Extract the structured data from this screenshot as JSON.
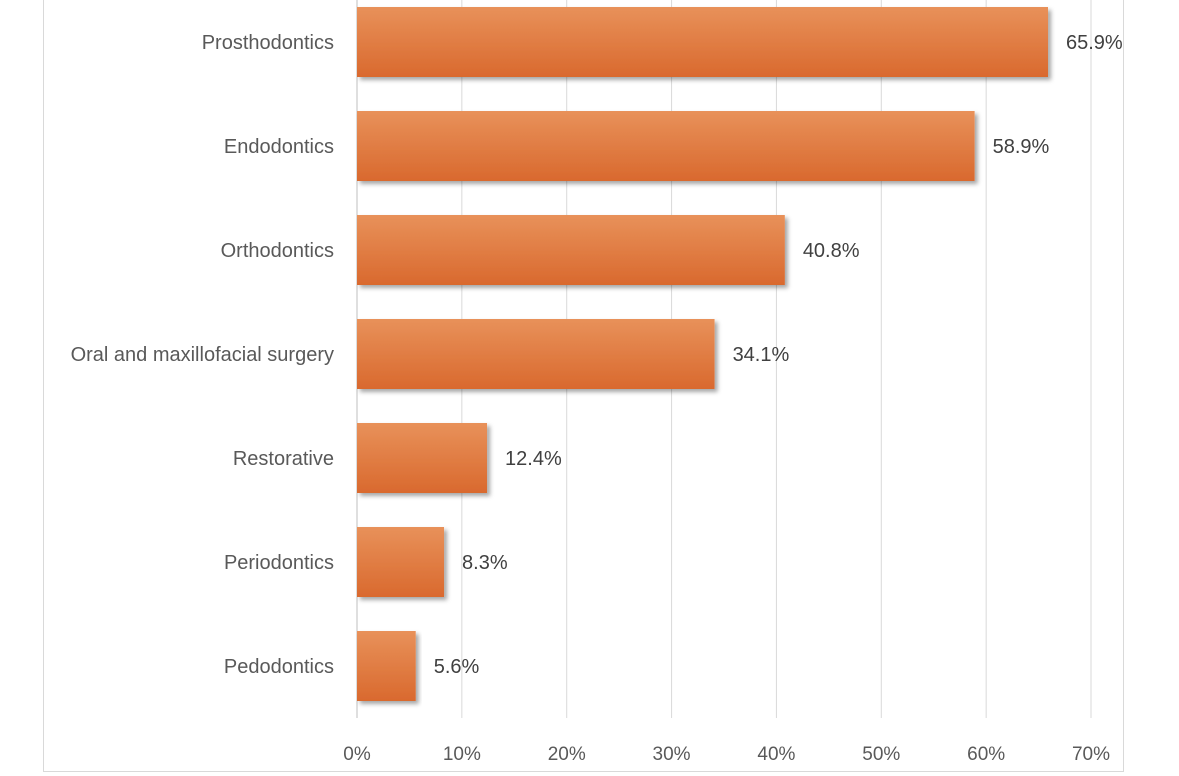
{
  "chart_data": {
    "type": "bar",
    "orientation": "horizontal",
    "title": "",
    "xlabel": "",
    "ylabel": "",
    "categories": [
      "Prosthodontics",
      "Endodontics",
      "Orthodontics",
      "Oral and maxillofacial surgery",
      "Restorative",
      "Periodontics",
      "Pedodontics"
    ],
    "values": [
      65.9,
      58.9,
      40.8,
      34.1,
      12.4,
      8.3,
      5.6
    ],
    "data_labels": [
      "65.9%",
      "58.9%",
      "40.8%",
      "34.1%",
      "12.4%",
      "8.3%",
      "5.6%"
    ],
    "xlim": [
      0,
      70
    ],
    "xticks": [
      0,
      10,
      20,
      30,
      40,
      50,
      60,
      70
    ],
    "xtick_labels": [
      "0%",
      "10%",
      "20%",
      "30%",
      "40%",
      "50%",
      "60%",
      "70%"
    ],
    "grid": true,
    "legend": "none",
    "colors": {
      "bar_top": "#e8915a",
      "bar_bottom": "#d9692e",
      "grid": "#d9d9d9",
      "text": "#595959"
    }
  }
}
